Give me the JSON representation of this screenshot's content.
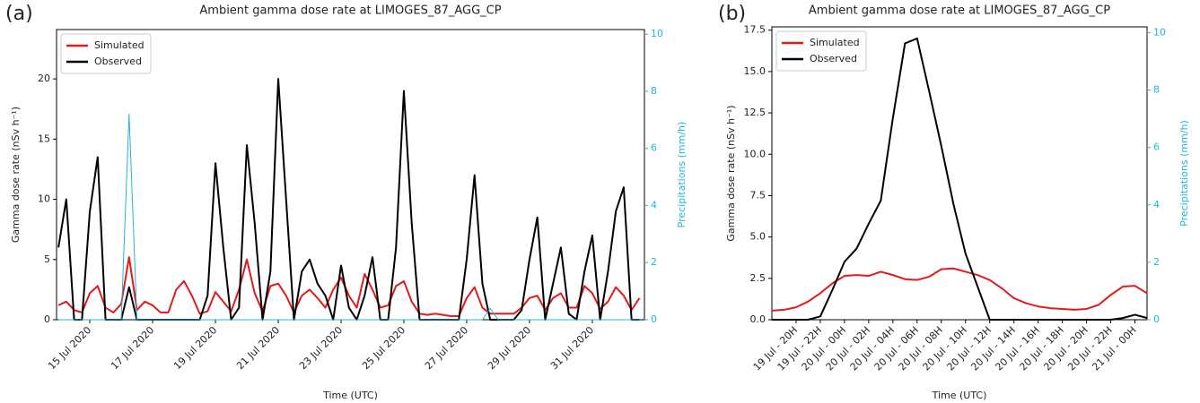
{
  "chart_data": [
    {
      "type": "line",
      "panel_label": "(a)",
      "title": "Ambient gamma dose rate at LIMOGES_87_AGG_CP",
      "x_label": "Time (UTC)",
      "y_label": "Gamma dose rate (nSv h⁻¹)",
      "y2_label": "Precipitations (mm/h)",
      "y2_color": "#1fb8d6",
      "legend": "upper left",
      "grid": false,
      "x": [
        14,
        14.25,
        14.5,
        14.75,
        15,
        15.25,
        15.5,
        15.75,
        16,
        16.25,
        16.5,
        16.75,
        17,
        17.25,
        17.5,
        17.75,
        18,
        18.25,
        18.5,
        18.75,
        19,
        19.25,
        19.5,
        19.75,
        20,
        20.25,
        20.5,
        20.75,
        21,
        21.25,
        21.5,
        21.75,
        22,
        22.25,
        22.5,
        22.75,
        23,
        23.25,
        23.5,
        23.75,
        24,
        24.25,
        24.5,
        24.75,
        25,
        25.25,
        25.5,
        25.75,
        26,
        26.25,
        26.5,
        26.75,
        27,
        27.25,
        27.5,
        27.75,
        28,
        28.25,
        28.5,
        28.75,
        29,
        29.25,
        29.5,
        29.75,
        30,
        30.25,
        30.5,
        30.75,
        31,
        31.25,
        31.5,
        31.75,
        32,
        32.25,
        32.5
      ],
      "xlim": [
        13.94,
        32.66
      ],
      "xticks": [
        {
          "value": 15,
          "label": "15 Jul 2020"
        },
        {
          "value": 17,
          "label": "17 Jul 2020"
        },
        {
          "value": 19,
          "label": "19 Jul 2020"
        },
        {
          "value": 21,
          "label": "21 Jul 2020"
        },
        {
          "value": 23,
          "label": "23 Jul 2020"
        },
        {
          "value": 25,
          "label": "25 Jul 2020"
        },
        {
          "value": 27,
          "label": "27 Jul 2020"
        },
        {
          "value": 29,
          "label": "29 Jul 2020"
        },
        {
          "value": 31,
          "label": "31 Jul 2020"
        }
      ],
      "ylim": [
        0,
        24.1
      ],
      "yticks": [
        0,
        5,
        10,
        15,
        20
      ],
      "y2lim": [
        0,
        10.16
      ],
      "y2ticks": [
        0,
        2,
        4,
        6,
        8,
        10
      ],
      "series": [
        {
          "name": "Simulated",
          "color": "#e31a1c",
          "values": [
            1.2,
            1.5,
            0.8,
            0.6,
            2.2,
            2.8,
            1.0,
            0.6,
            1.3,
            5.2,
            0.8,
            1.5,
            1.2,
            0.6,
            0.6,
            2.5,
            3.2,
            2.0,
            0.5,
            0.7,
            2.3,
            1.5,
            0.7,
            2.5,
            5.0,
            2.2,
            0.7,
            2.8,
            3.0,
            2.0,
            0.6,
            2.0,
            2.5,
            1.8,
            1.0,
            2.5,
            3.5,
            2.0,
            1.0,
            3.8,
            2.5,
            1.0,
            1.2,
            2.8,
            3.2,
            1.5,
            0.5,
            0.4,
            0.5,
            0.4,
            0.3,
            0.3,
            1.8,
            2.7,
            1.0,
            0.5,
            0.5,
            0.5,
            0.5,
            1.0,
            1.8,
            2.0,
            0.8,
            1.8,
            2.2,
            1.0,
            1.0,
            2.8,
            2.2,
            0.9,
            1.5,
            2.7,
            2.0,
            0.8,
            1.8
          ]
        },
        {
          "name": "Observed",
          "color": "#000000",
          "values": [
            6,
            10,
            0,
            0,
            9,
            13.5,
            0,
            0,
            0,
            2.7,
            0,
            0,
            0,
            0,
            0,
            0,
            0,
            0,
            0,
            2,
            13,
            6,
            0,
            1,
            14.5,
            8,
            0,
            4,
            20,
            10,
            0,
            4,
            5,
            3,
            2,
            0,
            4.5,
            1,
            0,
            2,
            5.2,
            0,
            0,
            6,
            19,
            8,
            0,
            0,
            0,
            0,
            0,
            0,
            5,
            12,
            3,
            0,
            0,
            0,
            0,
            0.8,
            5,
            8.5,
            0,
            3,
            6,
            0.5,
            0,
            4,
            7,
            0,
            4,
            9,
            11,
            0,
            0
          ]
        },
        {
          "color": "#1fb8d6",
          "axis": "y2",
          "values": [
            0,
            0,
            0,
            0,
            0,
            0,
            0,
            0,
            0,
            7.2,
            0,
            0,
            0,
            0,
            0,
            0,
            0,
            0,
            0,
            0,
            0,
            0,
            0,
            0,
            0,
            0,
            0,
            0,
            0,
            0,
            0,
            0,
            0,
            0,
            0,
            0,
            0,
            0,
            0,
            0,
            0,
            0,
            0,
            0,
            0,
            0,
            0,
            0,
            0,
            0,
            0,
            0,
            0,
            0,
            0,
            0.4,
            0,
            0,
            0,
            0,
            0,
            0,
            0,
            0,
            0,
            0,
            0,
            0,
            0,
            0,
            0,
            0,
            0,
            0,
            0
          ]
        }
      ]
    },
    {
      "type": "line",
      "panel_label": "(b)",
      "title": "Ambient gamma dose rate at LIMOGES_87_AGG_CP",
      "x_label": "Time (UTC)",
      "y_label": "Gamma dose rate (nSv h⁻¹)",
      "y2_label": "Precipitations (mm/h)",
      "y2_color": "#1fb8d6",
      "legend": "upper left",
      "grid": false,
      "categories": [
        null,
        null,
        "19 Jul - 20H",
        null,
        "19 Jul - 22H",
        null,
        "20 Jul - 00H",
        null,
        "20 Jul - 02H",
        null,
        "20 Jul - 04H",
        null,
        "20 Jul - 06H",
        null,
        "20 Jul - 08H",
        null,
        "20 Jul - 10H",
        null,
        "20 Jul - 12H",
        null,
        "20 Jul - 14H",
        null,
        "20 Jul - 16H",
        null,
        "20 Jul - 18H",
        null,
        "20 Jul - 20H",
        null,
        "20 Jul - 22H",
        null,
        "21 Jul - 00H",
        null
      ],
      "ylim": [
        0,
        17.7
      ],
      "yticks": [
        {
          "value": 0,
          "label": "0.0"
        },
        2.5,
        {
          "value": 5,
          "label": "5.0"
        },
        7.5,
        {
          "value": 10,
          "label": "10.0"
        },
        12.5,
        {
          "value": 15,
          "label": "15.0"
        },
        17.5
      ],
      "y2lim": [
        0,
        10.2
      ],
      "y2ticks": [
        0,
        2,
        4,
        6,
        8,
        10
      ],
      "series": [
        {
          "name": "Simulated",
          "color": "#e31a1c",
          "values": [
            0.55,
            0.6,
            0.75,
            1.1,
            1.6,
            2.2,
            2.65,
            2.7,
            2.65,
            2.9,
            2.7,
            2.45,
            2.4,
            2.6,
            3.05,
            3.1,
            2.9,
            2.7,
            2.4,
            1.9,
            1.3,
            1.0,
            0.8,
            0.7,
            0.65,
            0.6,
            0.65,
            0.9,
            1.5,
            2.0,
            2.05,
            1.6
          ]
        },
        {
          "name": "Observed",
          "color": "#000000",
          "values": [
            0,
            0,
            0,
            0,
            0.2,
            1.8,
            3.5,
            4.3,
            5.8,
            7.2,
            12.2,
            16.7,
            17.0,
            13.8,
            10.5,
            7.0,
            4.0,
            2.0,
            0,
            0,
            0,
            0,
            0,
            0,
            0,
            0,
            0,
            0,
            0,
            0.1,
            0.3,
            0.1
          ]
        }
      ]
    }
  ]
}
